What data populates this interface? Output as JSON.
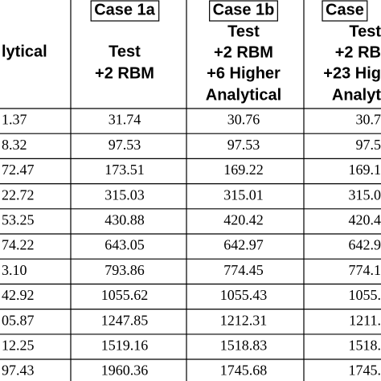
{
  "table": {
    "columns": [
      {
        "header": [
          "lytical"
        ]
      },
      {
        "case": "Case 1a",
        "header": [
          "Test",
          "+2 RBM"
        ]
      },
      {
        "case": "Case 1b",
        "header": [
          "Test",
          "+2 RBM",
          "+6 Higher",
          "Analytical"
        ]
      },
      {
        "case": "Case",
        "header": [
          "Test",
          "+2 RB",
          "+23 Hig",
          "Analyt"
        ]
      }
    ],
    "rows": [
      [
        "1.37",
        "31.74",
        "30.76",
        "30.7"
      ],
      [
        "8.32",
        "97.53",
        "97.53",
        "97.5"
      ],
      [
        "72.47",
        "173.51",
        "169.22",
        "169.1"
      ],
      [
        "22.72",
        "315.03",
        "315.01",
        "315.0"
      ],
      [
        "53.25",
        "430.88",
        "420.42",
        "420.4"
      ],
      [
        "74.22",
        "643.05",
        "642.97",
        "642.9"
      ],
      [
        "3.10",
        "793.86",
        "774.45",
        "774.1"
      ],
      [
        "42.92",
        "1055.62",
        "1055.43",
        "1055."
      ],
      [
        "05.87",
        "1247.85",
        "1212.31",
        "1211."
      ],
      [
        "12.25",
        "1519.16",
        "1518.83",
        "1518."
      ],
      [
        "97.43",
        "1960.36",
        "1745.68",
        "1745."
      ]
    ]
  }
}
